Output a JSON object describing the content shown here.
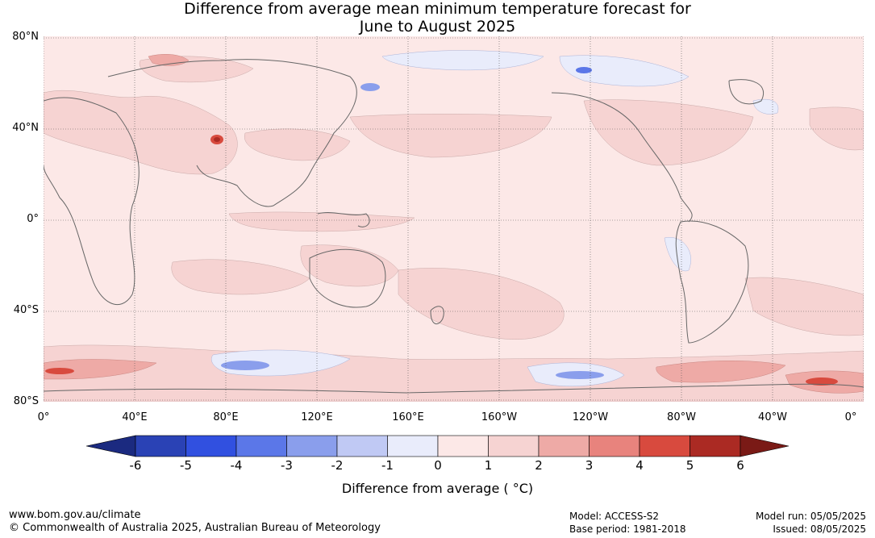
{
  "title": {
    "line1": "Difference from average mean minimum temperature forecast for",
    "line2": "June to August 2025"
  },
  "map": {
    "lat_labels": [
      "80°N",
      "40°N",
      "0°",
      "40°S",
      "80°S"
    ],
    "lon_labels": [
      "0°",
      "40°E",
      "80°E",
      "120°E",
      "160°E",
      "160°W",
      "120°W",
      "80°W",
      "40°W",
      "0°"
    ]
  },
  "colorbar": {
    "ticks": [
      "-6",
      "-5",
      "-4",
      "-3",
      "-2",
      "-1",
      "0",
      "1",
      "2",
      "3",
      "4",
      "5",
      "6"
    ],
    "colors": [
      "#1b2a80",
      "#2a42b5",
      "#3150e0",
      "#5b77e8",
      "#8a9eec",
      "#c0c9f4",
      "#e9ecfb",
      "#fce8e7",
      "#f6d3d2",
      "#eeaaa6",
      "#e8837d",
      "#d84a3e",
      "#ab2a23",
      "#7a1a16"
    ],
    "label": "Difference from average ( °C)"
  },
  "footer": {
    "website": "www.bom.gov.au/climate",
    "copyright": "© Commonwealth of Australia 2025, Australian Bureau of Meteorology",
    "model": "Model: ACCESS-S2",
    "base_period": "Base period: 1981-2018",
    "model_run": "Model run: 05/05/2025",
    "issued": "Issued: 08/05/2025"
  }
}
